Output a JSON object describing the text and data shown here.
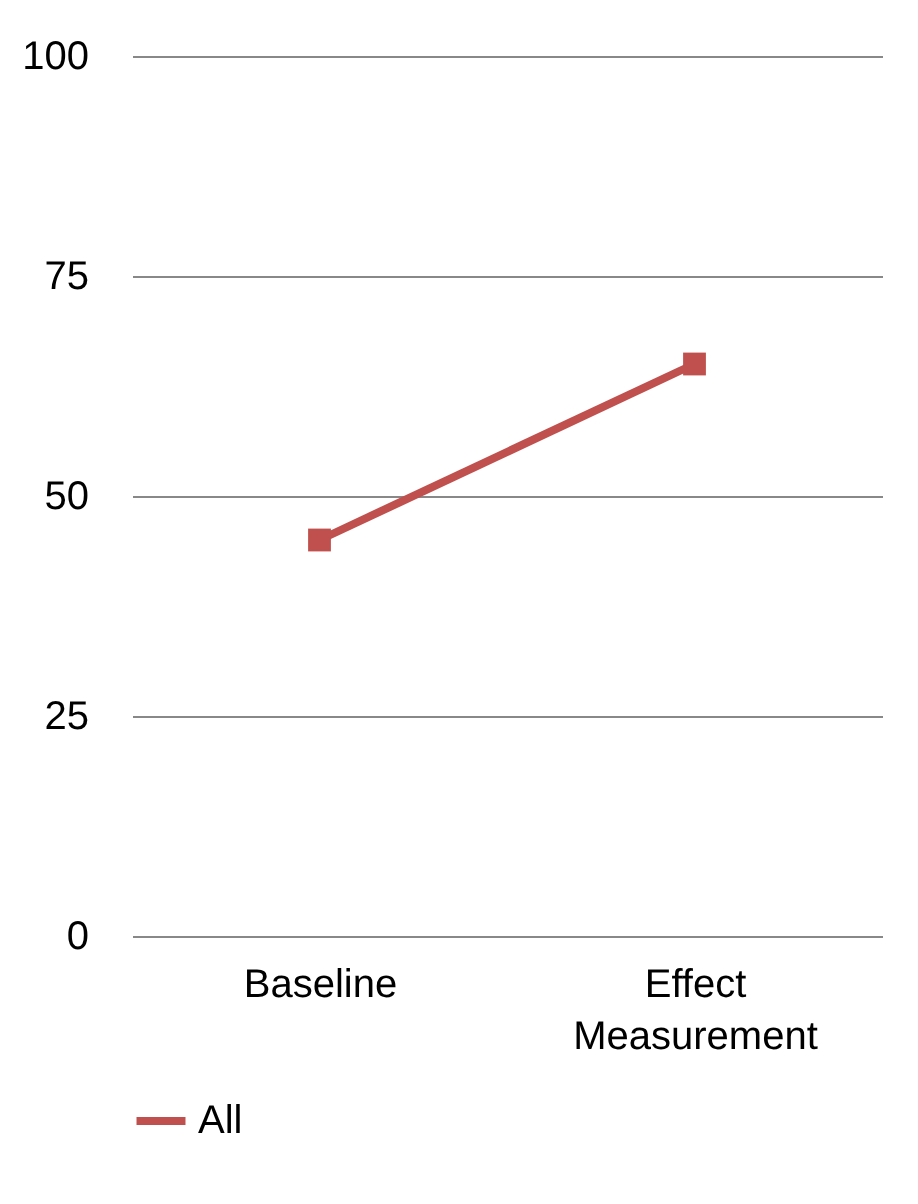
{
  "chart_data": {
    "type": "line",
    "categories": [
      "Baseline",
      "Effect Measurement"
    ],
    "series": [
      {
        "name": "All",
        "color": "#c0504d",
        "values": [
          45,
          65
        ]
      }
    ],
    "ylim": [
      0,
      100
    ],
    "yticks": [
      0,
      25,
      50,
      75,
      100
    ],
    "grid": "y",
    "legend": "bottom",
    "marker": "square",
    "line_style": "solid"
  }
}
